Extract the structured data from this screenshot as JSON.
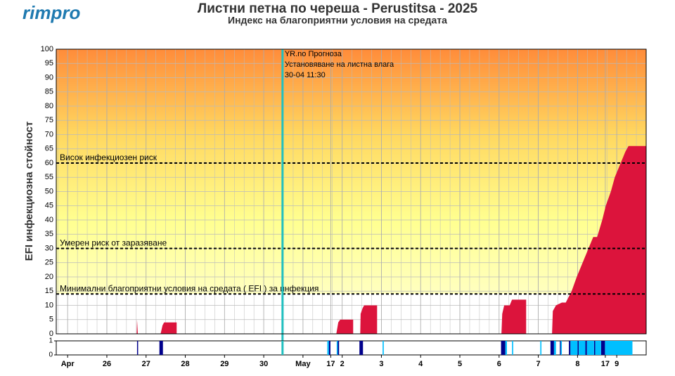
{
  "logo": "rimpro",
  "chart_data": {
    "type": "area",
    "title": "Листни петна по череша - Perustitsa - 2025",
    "subtitle": "Индекс на благоприятни условия на средата",
    "ylabel": "EFI инфекциозна стойност",
    "xlim": [
      -0.29,
      14.75
    ],
    "ylim": [
      0,
      100
    ],
    "yticks": [
      0,
      5,
      10,
      15,
      20,
      25,
      30,
      35,
      40,
      45,
      50,
      55,
      60,
      65,
      70,
      75,
      80,
      85,
      90,
      95,
      100
    ],
    "xticks": [
      {
        "value": 0,
        "label": "Apr"
      },
      {
        "value": 1,
        "label": "26"
      },
      {
        "value": 2,
        "label": "27"
      },
      {
        "value": 3,
        "label": "28"
      },
      {
        "value": 4,
        "label": "29"
      },
      {
        "value": 5,
        "label": "30"
      },
      {
        "value": 6,
        "label": "May"
      },
      {
        "value": 6.708,
        "label": "17"
      },
      {
        "value": 7,
        "label": "2"
      },
      {
        "value": 8,
        "label": "3"
      },
      {
        "value": 9,
        "label": "4"
      },
      {
        "value": 10,
        "label": "5"
      },
      {
        "value": 11,
        "label": "6"
      },
      {
        "value": 12,
        "label": "7"
      },
      {
        "value": 13,
        "label": "8"
      },
      {
        "value": 13.708,
        "label": "17"
      },
      {
        "value": 14,
        "label": "9"
      }
    ],
    "x_minor_step": 0.25,
    "grid": true,
    "series": [
      {
        "name": "EFI",
        "color": "#dc143c",
        "x": [
          1.76,
          1.77,
          1.79,
          null,
          2.37,
          2.42,
          2.46,
          2.78,
          2.78,
          null,
          6.85,
          6.9,
          6.95,
          7.28,
          7.28,
          null,
          7.46,
          7.47,
          7.52,
          7.56,
          7.89,
          7.89,
          null,
          11.06,
          11.08,
          11.13,
          11.27,
          11.33,
          11.69,
          11.69,
          null,
          12.35,
          12.37,
          12.45,
          12.6,
          12.7,
          12.85,
          12.98,
          13.28,
          13.4,
          13.5,
          13.63,
          13.72,
          13.85,
          13.95,
          14.1,
          14.22,
          14.3,
          14.75,
          14.75
        ],
        "values": [
          0,
          5,
          0,
          null,
          0,
          3,
          4,
          4,
          0,
          null,
          0,
          4,
          5,
          5,
          0,
          null,
          0,
          7,
          9,
          10,
          10,
          0,
          null,
          0,
          7,
          10,
          10,
          12,
          12,
          0,
          null,
          0,
          8,
          10,
          11,
          11,
          15,
          20,
          30,
          34,
          34,
          40,
          45,
          50,
          55,
          60,
          64,
          66,
          66,
          0
        ]
      }
    ],
    "thresholds": [
      {
        "value": 60,
        "label": "Висок инфекциозен риск"
      },
      {
        "value": 30,
        "label": "Умерен риск от заразяване"
      },
      {
        "value": 14,
        "label": "Минимални благоприятни условия на средата ( EFI ) за инфекция"
      }
    ],
    "forecast_marker": {
      "value": 5.479,
      "lines": [
        "YR.no Прогноза",
        "Установяване на листна влага"
      ],
      "label": "30-04 11:30",
      "color": "#20c0c0"
    },
    "wetness": {
      "ylim": [
        0,
        1
      ],
      "yticks": [
        0,
        1
      ],
      "series": [
        {
          "color": "#00008b",
          "x_start": [
            1.77,
            2.34,
            6.66,
            6.88,
            7.44,
            11.05,
            12.31,
            12.55,
            12.78,
            13.0,
            13.2,
            13.42,
            13.6
          ],
          "x_end": [
            1.79,
            2.43,
            6.7,
            6.92,
            7.53,
            11.16,
            12.4,
            12.57,
            12.82,
            13.03,
            13.24,
            13.45,
            13.7
          ],
          "values": [
            1,
            1,
            1,
            1,
            1,
            1,
            1,
            1,
            1,
            1,
            1,
            1,
            1
          ]
        },
        {
          "color": "#00bfff",
          "x_start": [
            6.62,
            6.86,
            8.03,
            11.16,
            11.33,
            12.05,
            12.4,
            12.57,
            12.82,
            13.03,
            13.24,
            13.45,
            13.7
          ],
          "x_end": [
            6.66,
            6.88,
            8.06,
            11.2,
            11.36,
            12.08,
            12.45,
            12.6,
            13.0,
            13.2,
            13.42,
            13.6,
            14.4
          ],
          "values": [
            1,
            1,
            1,
            1,
            1,
            1,
            1,
            1,
            1,
            1,
            1,
            1,
            1
          ]
        }
      ]
    }
  }
}
